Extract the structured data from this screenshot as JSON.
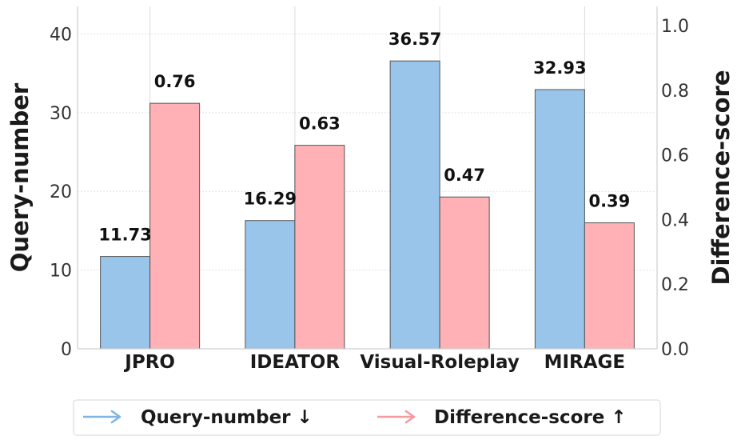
{
  "chart_data": {
    "type": "bar",
    "categories": [
      "JPRO",
      "IDEATOR",
      "Visual-Roleplay",
      "MIRAGE"
    ],
    "series": [
      {
        "name": "Query-number ↓",
        "values": [
          11.73,
          16.29,
          36.57,
          32.93
        ],
        "color": "#99c5ea",
        "axis": "left",
        "labels": [
          "11.73",
          "16.29",
          "36.57",
          "32.93"
        ]
      },
      {
        "name": "Difference-score ↑",
        "values": [
          0.76,
          0.63,
          0.47,
          0.39
        ],
        "color": "#ffb1b5",
        "axis": "right",
        "labels": [
          "0.76",
          "0.63",
          "0.47",
          "0.39"
        ]
      }
    ],
    "ylabel": "Query-number",
    "ylabel_right": "Difference-score",
    "ylim": [
      0,
      43.5
    ],
    "ylim_right": [
      0,
      1.06
    ],
    "yticks": [
      "0",
      "10",
      "20",
      "30",
      "40"
    ],
    "yticks_values": [
      0,
      10,
      20,
      30,
      40
    ],
    "yticks_right": [
      "0.0",
      "0.2",
      "0.4",
      "0.6",
      "0.8",
      "1.0"
    ],
    "yticks_right_values": [
      0,
      0.2,
      0.4,
      0.6,
      0.8,
      1.0
    ],
    "legend_position": "bottom-center",
    "legend_arrow_colors": [
      "#7fb4e3",
      "#f59a9e"
    ],
    "grid": true
  }
}
